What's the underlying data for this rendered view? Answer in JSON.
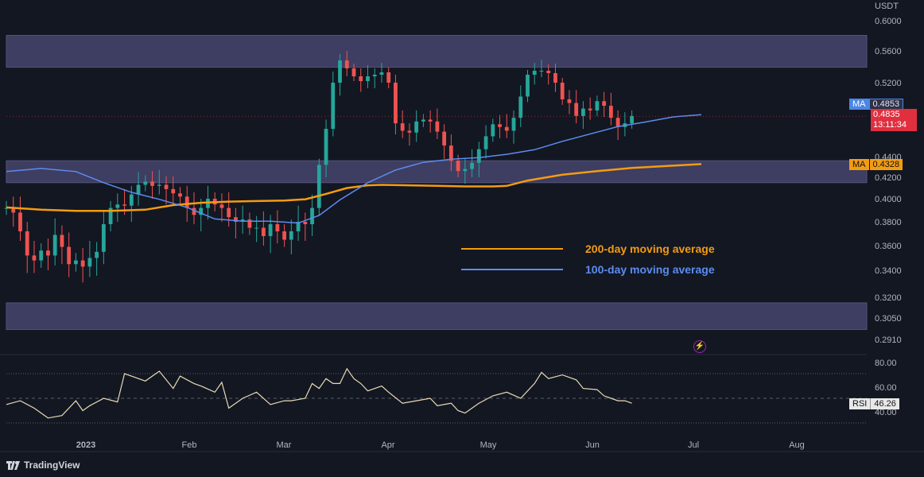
{
  "header": {
    "currency": "USDT"
  },
  "brand": {
    "name": "TradingView",
    "logo_icon": "tradingview-logo-icon"
  },
  "tags": {
    "ma100": {
      "key": "MA",
      "value": "0.4853",
      "color": "#4a86e8"
    },
    "ma200": {
      "key": "MA",
      "value": "0.4328",
      "color": "#f39c12"
    },
    "price": {
      "value": "0.4835",
      "countdown": "13:11:34",
      "color": "#e0303f"
    },
    "rsi": {
      "key": "RSI",
      "value": "46.26"
    }
  },
  "legend": [
    {
      "label": "200-day moving average",
      "color": "#f39c12"
    },
    {
      "label": "100-day moving average",
      "color": "#5b8def"
    }
  ],
  "icons": {
    "flash": "lightning-icon"
  },
  "colors": {
    "up": "#26a69a",
    "down": "#ef5350",
    "zone": "#4d4a78",
    "background": "#131722"
  },
  "chart_data": [
    {
      "type": "candlestick",
      "title": "",
      "y_ticks": [
        "0.6000",
        "0.5600",
        "0.5200",
        "0.4400",
        "0.4200",
        "0.4000",
        "0.3800",
        "0.3600",
        "0.3400",
        "0.3200",
        "0.3050",
        "0.2910"
      ],
      "x_ticks": [
        "2023",
        "Feb",
        "Mar",
        "Apr",
        "May",
        "Jun",
        "Jul",
        "Aug"
      ],
      "support_resistance_zones": [
        [
          0.5394,
          0.5805
        ],
        [
          0.415,
          0.436
        ],
        [
          0.2975,
          0.316
        ]
      ],
      "series": [
        {
          "name": "200-day moving average",
          "kind": "line",
          "points": [
            [
              0.0,
              0.3925
            ],
            [
              0.05,
              0.3905
            ],
            [
              0.1,
              0.3895
            ],
            [
              0.15,
              0.3895
            ],
            [
              0.2,
              0.3905
            ],
            [
              0.24,
              0.3945
            ],
            [
              0.28,
              0.3965
            ],
            [
              0.32,
              0.3975
            ],
            [
              0.36,
              0.398
            ],
            [
              0.4,
              0.3985
            ],
            [
              0.43,
              0.3995
            ],
            [
              0.46,
              0.4045
            ],
            [
              0.49,
              0.41
            ],
            [
              0.52,
              0.4125
            ],
            [
              0.54,
              0.413
            ],
            [
              0.58,
              0.4125
            ],
            [
              0.62,
              0.412
            ],
            [
              0.66,
              0.4115
            ],
            [
              0.7,
              0.4115
            ],
            [
              0.72,
              0.412
            ],
            [
              0.75,
              0.417
            ],
            [
              0.8,
              0.4225
            ],
            [
              0.85,
              0.426
            ],
            [
              0.9,
              0.429
            ],
            [
              1.0,
              0.4328
            ]
          ]
        },
        {
          "name": "100-day moving average",
          "kind": "line",
          "points": [
            [
              0.0,
              0.4255
            ],
            [
              0.05,
              0.4285
            ],
            [
              0.1,
              0.4255
            ],
            [
              0.14,
              0.415
            ],
            [
              0.18,
              0.406
            ],
            [
              0.22,
              0.3995
            ],
            [
              0.26,
              0.3925
            ],
            [
              0.3,
              0.3825
            ],
            [
              0.34,
              0.3805
            ],
            [
              0.38,
              0.3805
            ],
            [
              0.42,
              0.379
            ],
            [
              0.45,
              0.3855
            ],
            [
              0.48,
              0.399
            ],
            [
              0.52,
              0.415
            ],
            [
              0.56,
              0.427
            ],
            [
              0.6,
              0.4345
            ],
            [
              0.64,
              0.4375
            ],
            [
              0.68,
              0.439
            ],
            [
              0.72,
              0.4425
            ],
            [
              0.76,
              0.4475
            ],
            [
              0.8,
              0.4565
            ],
            [
              0.85,
              0.4665
            ],
            [
              0.88,
              0.4725
            ],
            [
              0.92,
              0.4775
            ],
            [
              0.96,
              0.483
            ],
            [
              1.0,
              0.4853
            ]
          ]
        },
        {
          "name": "price",
          "kind": "close",
          "points": [
            [
              0.0,
              0.392
            ],
            [
              0.01,
              0.388
            ],
            [
              0.02,
              0.372
            ],
            [
              0.03,
              0.352
            ],
            [
              0.04,
              0.348
            ],
            [
              0.05,
              0.356
            ],
            [
              0.06,
              0.352
            ],
            [
              0.07,
              0.369
            ],
            [
              0.08,
              0.359
            ],
            [
              0.09,
              0.345
            ],
            [
              0.1,
              0.348
            ],
            [
              0.11,
              0.343
            ],
            [
              0.12,
              0.35
            ],
            [
              0.13,
              0.355
            ],
            [
              0.14,
              0.378
            ],
            [
              0.15,
              0.392
            ],
            [
              0.16,
              0.395
            ],
            [
              0.17,
              0.394
            ],
            [
              0.18,
              0.404
            ],
            [
              0.19,
              0.413
            ],
            [
              0.2,
              0.416
            ],
            [
              0.21,
              0.412
            ],
            [
              0.22,
              0.413
            ],
            [
              0.23,
              0.409
            ],
            [
              0.24,
              0.405
            ],
            [
              0.25,
              0.402
            ],
            [
              0.26,
              0.392
            ],
            [
              0.27,
              0.386
            ],
            [
              0.28,
              0.392
            ],
            [
              0.29,
              0.4
            ],
            [
              0.3,
              0.395
            ],
            [
              0.31,
              0.392
            ],
            [
              0.32,
              0.384
            ],
            [
              0.33,
              0.38
            ],
            [
              0.34,
              0.382
            ],
            [
              0.35,
              0.375
            ],
            [
              0.36,
              0.375
            ],
            [
              0.37,
              0.368
            ],
            [
              0.38,
              0.378
            ],
            [
              0.39,
              0.372
            ],
            [
              0.4,
              0.365
            ],
            [
              0.41,
              0.372
            ],
            [
              0.42,
              0.38
            ],
            [
              0.43,
              0.378
            ],
            [
              0.44,
              0.392
            ],
            [
              0.45,
              0.432
            ],
            [
              0.46,
              0.47
            ],
            [
              0.47,
              0.52
            ],
            [
              0.48,
              0.548
            ],
            [
              0.49,
              0.538
            ],
            [
              0.5,
              0.528
            ],
            [
              0.51,
              0.522
            ],
            [
              0.52,
              0.528
            ],
            [
              0.53,
              0.53
            ],
            [
              0.54,
              0.533
            ],
            [
              0.55,
              0.52
            ],
            [
              0.56,
              0.476
            ],
            [
              0.57,
              0.468
            ],
            [
              0.58,
              0.466
            ],
            [
              0.59,
              0.478
            ],
            [
              0.6,
              0.48
            ],
            [
              0.61,
              0.478
            ],
            [
              0.62,
              0.467
            ],
            [
              0.63,
              0.452
            ],
            [
              0.64,
              0.436
            ],
            [
              0.65,
              0.426
            ],
            [
              0.66,
              0.428
            ],
            [
              0.67,
              0.434
            ],
            [
              0.68,
              0.448
            ],
            [
              0.69,
              0.462
            ],
            [
              0.7,
              0.475
            ],
            [
              0.71,
              0.472
            ],
            [
              0.72,
              0.468
            ],
            [
              0.73,
              0.482
            ],
            [
              0.74,
              0.505
            ],
            [
              0.75,
              0.53
            ],
            [
              0.76,
              0.535
            ],
            [
              0.77,
              0.535
            ],
            [
              0.78,
              0.532
            ],
            [
              0.79,
              0.52
            ],
            [
              0.8,
              0.502
            ],
            [
              0.81,
              0.498
            ],
            [
              0.82,
              0.484
            ],
            [
              0.83,
              0.492
            ],
            [
              0.84,
              0.49
            ],
            [
              0.85,
              0.5
            ],
            [
              0.86,
              0.495
            ],
            [
              0.87,
              0.482
            ],
            [
              0.88,
              0.472
            ],
            [
              0.89,
              0.476
            ],
            [
              0.9,
              0.484
            ]
          ]
        }
      ]
    },
    {
      "type": "line",
      "title": "",
      "y_ticks": [
        "80.00",
        "60.00",
        "40.00"
      ],
      "series": [
        {
          "name": "RSI",
          "points": [
            [
              0.0,
              45
            ],
            [
              0.02,
              48
            ],
            [
              0.04,
              42
            ],
            [
              0.06,
              34
            ],
            [
              0.08,
              36
            ],
            [
              0.1,
              48
            ],
            [
              0.11,
              40
            ],
            [
              0.12,
              44
            ],
            [
              0.14,
              50
            ],
            [
              0.16,
              47
            ],
            [
              0.17,
              70
            ],
            [
              0.18,
              68
            ],
            [
              0.2,
              64
            ],
            [
              0.22,
              72
            ],
            [
              0.24,
              58
            ],
            [
              0.25,
              68
            ],
            [
              0.27,
              62
            ],
            [
              0.28,
              60
            ],
            [
              0.3,
              55
            ],
            [
              0.31,
              63
            ],
            [
              0.32,
              42
            ],
            [
              0.34,
              50
            ],
            [
              0.36,
              55
            ],
            [
              0.38,
              45
            ],
            [
              0.4,
              48
            ],
            [
              0.41,
              48
            ],
            [
              0.43,
              50
            ],
            [
              0.44,
              62
            ],
            [
              0.45,
              58
            ],
            [
              0.46,
              66
            ],
            [
              0.47,
              62
            ],
            [
              0.48,
              62
            ],
            [
              0.49,
              74
            ],
            [
              0.5,
              66
            ],
            [
              0.51,
              62
            ],
            [
              0.52,
              56
            ],
            [
              0.54,
              60
            ],
            [
              0.55,
              55
            ],
            [
              0.57,
              46
            ],
            [
              0.59,
              48
            ],
            [
              0.61,
              50
            ],
            [
              0.62,
              44
            ],
            [
              0.64,
              46
            ],
            [
              0.65,
              40
            ],
            [
              0.66,
              38
            ],
            [
              0.68,
              46
            ],
            [
              0.7,
              52
            ],
            [
              0.72,
              55
            ],
            [
              0.74,
              50
            ],
            [
              0.76,
              62
            ],
            [
              0.77,
              71
            ],
            [
              0.78,
              66
            ],
            [
              0.8,
              69
            ],
            [
              0.82,
              65
            ],
            [
              0.83,
              58
            ],
            [
              0.85,
              57
            ],
            [
              0.86,
              52
            ],
            [
              0.87,
              50
            ],
            [
              0.88,
              48
            ],
            [
              0.89,
              48
            ],
            [
              0.9,
              46
            ]
          ]
        }
      ],
      "reference_lines": [
        70,
        50,
        30
      ]
    }
  ]
}
